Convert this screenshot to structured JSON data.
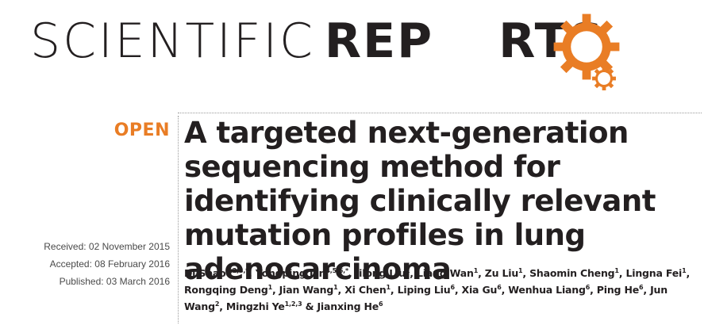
{
  "journal": {
    "name_light": "SCIENTIFIC",
    "name_bold_start": "REP",
    "name_bold_end": "RTS",
    "gear_color": "#e97d25"
  },
  "article": {
    "access_label": "OPEN",
    "title": "A targeted next-generation sequencing method for identifying clinically relevant mutation profiles in lung adenocarcinoma",
    "dates": {
      "received": "Received: 02 November 2015",
      "accepted": "Accepted: 08 February 2016",
      "published": "Published: 03 March 2016"
    },
    "authors": [
      {
        "name": "Di Shao",
        "aff": "1,2,3,*",
        "sep": ", "
      },
      {
        "name": "Yongping Lin",
        "aff": "4,5,6,*",
        "sep": ", "
      },
      {
        "name": "Jilong Liu",
        "aff": "1",
        "sep": ", "
      },
      {
        "name": "Liang Wan",
        "aff": "1",
        "sep": ", "
      },
      {
        "name": "Zu Liu",
        "aff": "1",
        "sep": ", "
      },
      {
        "name": "Shaomin Cheng",
        "aff": "1",
        "sep": ", "
      },
      {
        "name": "Lingna Fei",
        "aff": "1",
        "sep": ", "
      },
      {
        "name": "Rongqing Deng",
        "aff": "1",
        "sep": ", "
      },
      {
        "name": "Jian Wang",
        "aff": "1",
        "sep": ", "
      },
      {
        "name": "Xi Chen",
        "aff": "1",
        "sep": ", "
      },
      {
        "name": "Liping Liu",
        "aff": "6",
        "sep": ", "
      },
      {
        "name": "Xia Gu",
        "aff": "6",
        "sep": ", "
      },
      {
        "name": "Wenhua Liang",
        "aff": "6",
        "sep": ", "
      },
      {
        "name": "Ping He",
        "aff": "6",
        "sep": ", "
      },
      {
        "name": "Jun Wang",
        "aff": "2",
        "sep": ", "
      },
      {
        "name": "Mingzhi Ye",
        "aff": "1,2,3",
        "sep": " & "
      },
      {
        "name": "Jianxing He",
        "aff": "6",
        "sep": ""
      }
    ]
  }
}
